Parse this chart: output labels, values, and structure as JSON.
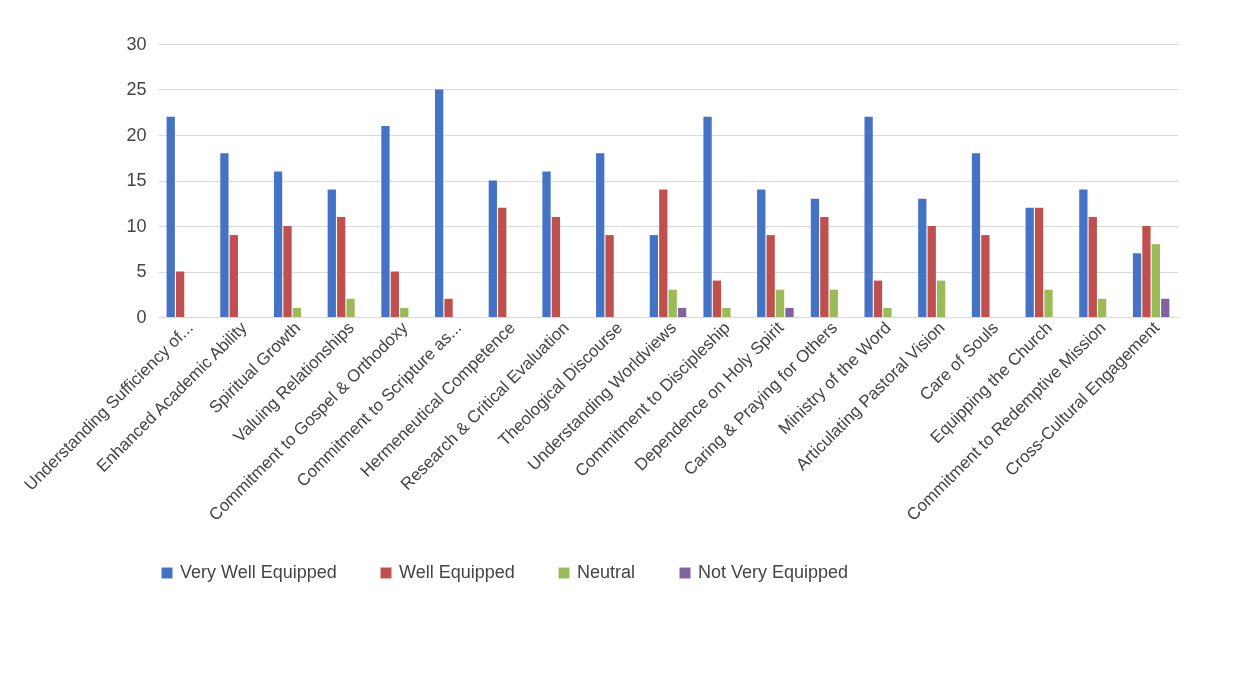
{
  "chart_data": {
    "type": "bar",
    "categories": [
      "Understanding Sufficiency of...",
      "Enhanced Academic Ability",
      "Spiritual Growth",
      "Valuing Relationships",
      "Commitment to Gospel & Orthodoxy",
      "Commitment to Scripture as...",
      "Hermeneutical Competence",
      "Research & Critical Evaluation",
      "Theological Discourse",
      "Understanding Worldviews",
      "Commitment to Discipleship",
      "Dependence on Holy Spirit",
      "Caring & Praying for Others",
      "Ministry of the Word",
      "Articulating Pastoral Vision",
      "Care of Souls",
      "Equipping the Church",
      "Commitment to Redemptive Mission",
      "Cross-Cultural Engagement"
    ],
    "series": [
      {
        "name": "Very Well Equipped",
        "color": "#4472c4",
        "values": [
          22,
          18,
          16,
          14,
          21,
          25,
          15,
          16,
          18,
          9,
          22,
          14,
          13,
          22,
          13,
          18,
          12,
          14,
          7
        ]
      },
      {
        "name": "Well Equipped",
        "color": "#c0504d",
        "values": [
          5,
          9,
          10,
          11,
          5,
          2,
          12,
          11,
          9,
          14,
          4,
          9,
          11,
          4,
          10,
          9,
          12,
          11,
          10
        ]
      },
      {
        "name": "Neutral",
        "color": "#9bbb59",
        "values": [
          null,
          null,
          1,
          2,
          1,
          null,
          null,
          null,
          null,
          3,
          1,
          3,
          3,
          1,
          4,
          null,
          3,
          2,
          8
        ]
      },
      {
        "name": "Not Very Equipped",
        "color": "#8064a2",
        "values": [
          null,
          null,
          null,
          null,
          null,
          null,
          null,
          null,
          null,
          1,
          null,
          1,
          null,
          null,
          null,
          null,
          null,
          null,
          2
        ]
      }
    ],
    "ylim": [
      0,
      30
    ],
    "yticks": [
      0,
      5,
      10,
      15,
      20,
      25,
      30
    ],
    "grid": "y",
    "legend": "bottom"
  }
}
